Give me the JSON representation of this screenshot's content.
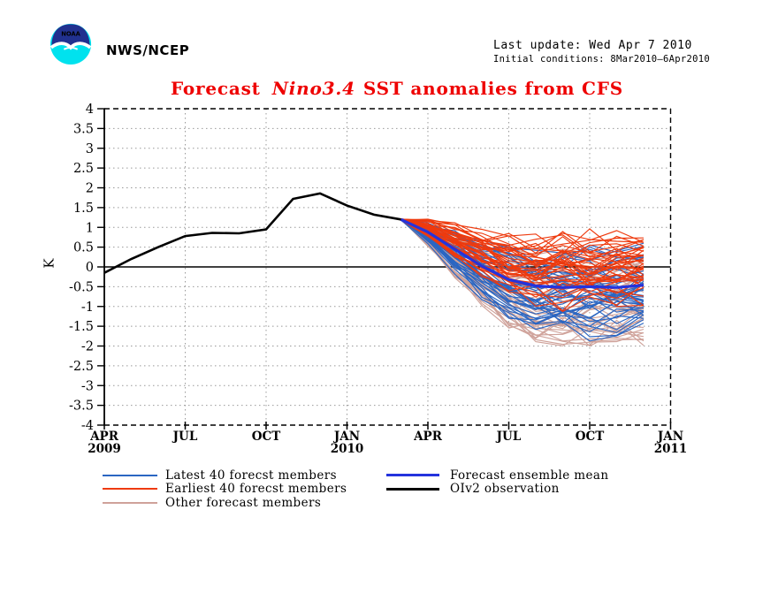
{
  "header": {
    "agency": "NWS/NCEP",
    "last_update": "Last update: Wed Apr 7 2010",
    "initial_conditions": "Initial conditions: 8Mar2010–6Apr2010",
    "logo": {
      "label": "NOAA",
      "navy": "#21318f",
      "cyan": "#00e2ee",
      "white": "#ffffff"
    }
  },
  "title": {
    "prefix": "Forecast",
    "italic": "Nino3.4",
    "suffix": "SST anomalies from CFS",
    "color": "#ee0000"
  },
  "chart_data": {
    "type": "line",
    "title": "Forecast Nino3.4 SST anomalies from CFS",
    "ylabel": "K",
    "ylim": [
      -4,
      4
    ],
    "ytick_step": 0.5,
    "grid": true,
    "zero_line": true,
    "x_axis": {
      "unit": "month",
      "range_months": 21,
      "ticks": [
        {
          "m": 0,
          "label": "APR",
          "year": "2009"
        },
        {
          "m": 3,
          "label": "JUL",
          "year": ""
        },
        {
          "m": 6,
          "label": "OCT",
          "year": ""
        },
        {
          "m": 9,
          "label": "JAN",
          "year": "2010"
        },
        {
          "m": 12,
          "label": "APR",
          "year": ""
        },
        {
          "m": 15,
          "label": "JUL",
          "year": ""
        },
        {
          "m": 18,
          "label": "OCT",
          "year": ""
        },
        {
          "m": 21,
          "label": "JAN",
          "year": "2011"
        }
      ]
    },
    "series": {
      "observation": {
        "name": "OIv2 observation",
        "color": "#000000",
        "months": [
          0,
          1,
          2,
          3,
          4,
          5,
          6,
          7,
          8,
          9,
          10,
          11
        ],
        "values": [
          -0.15,
          0.2,
          0.5,
          0.78,
          0.86,
          0.85,
          0.95,
          1.72,
          1.86,
          1.55,
          1.32,
          1.2
        ]
      },
      "ensemble_mean": {
        "name": "Forecast ensemble mean",
        "color": "#2433dd",
        "months": [
          11,
          12,
          13,
          14,
          15,
          16,
          17,
          18,
          19,
          20
        ],
        "values": [
          1.2,
          0.88,
          0.45,
          0.02,
          -0.32,
          -0.48,
          -0.52,
          -0.5,
          -0.52,
          -0.46
        ]
      },
      "ensemble_members": {
        "months": [
          11,
          12,
          13,
          14,
          15,
          16,
          17,
          18,
          19,
          20
        ],
        "spread_ramp": [
          0,
          0.25,
          0.5,
          0.7,
          0.85,
          0.95,
          1,
          1,
          1,
          1
        ],
        "monthly_jitter": [
          0.02,
          0.07,
          0.13,
          0.2,
          0.28,
          0.33,
          0.35,
          0.35,
          0.35,
          0.33
        ],
        "groups": [
          {
            "name": "Other forecast members",
            "color": "#cfa29a",
            "count": 40,
            "end_offset_range": [
              -1.35,
              0.85
            ],
            "seed": 97531
          },
          {
            "name": "Latest 40 forecst members",
            "color": "#2b66c2",
            "count": 40,
            "end_offset_range": [
              -1.1,
              0.8
            ],
            "seed": 24680
          },
          {
            "name": "Earliest 40 forecst members",
            "color": "#ee3a0e",
            "count": 40,
            "end_offset_range": [
              -0.45,
              1.15
            ],
            "seed": 13579
          }
        ]
      }
    }
  },
  "legend": {
    "items": [
      {
        "label": "Latest 40 forecst members",
        "color": "#2b66c2",
        "thick": false
      },
      {
        "label": "Earliest 40 forecst members",
        "color": "#ee3a0e",
        "thick": false
      },
      {
        "label": "Other forecast members",
        "color": "#cfa29a",
        "thick": false
      },
      {
        "label": "Forecast ensemble mean",
        "color": "#2433dd",
        "thick": true
      },
      {
        "label": "OIv2 observation",
        "color": "#000000",
        "thick": true
      }
    ]
  }
}
